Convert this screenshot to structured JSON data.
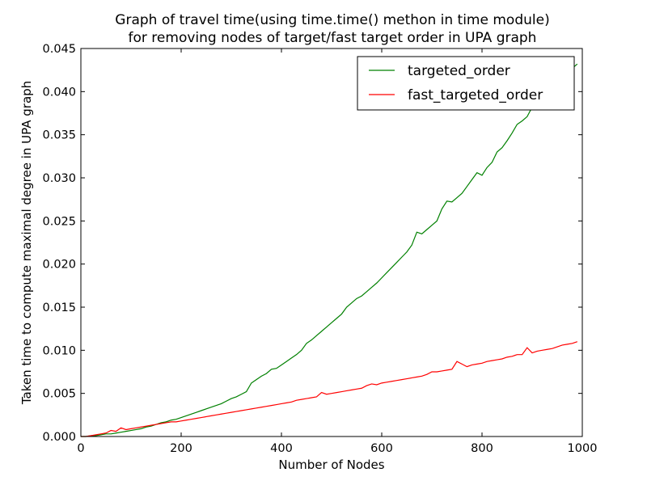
{
  "chart_data": {
    "type": "line",
    "title": "Graph of travel time(using time.time() methon in time module)",
    "subtitle": "for removing nodes of target/fast target order in UPA graph",
    "xlabel": "Number of Nodes",
    "ylabel": "Taken time to compute maximal degree in UPA graph",
    "xlim": [
      0,
      1000
    ],
    "ylim": [
      0,
      0.045
    ],
    "xticks": [
      "0",
      "200",
      "400",
      "600",
      "800",
      "1000"
    ],
    "yticks": [
      "0.000",
      "0.005",
      "0.010",
      "0.015",
      "0.020",
      "0.025",
      "0.030",
      "0.035",
      "0.040",
      "0.045"
    ],
    "grid": false,
    "legend_position": "top-right",
    "x": [
      10,
      20,
      30,
      40,
      50,
      60,
      70,
      80,
      90,
      100,
      110,
      120,
      130,
      140,
      150,
      160,
      170,
      180,
      190,
      200,
      210,
      220,
      230,
      240,
      250,
      260,
      270,
      280,
      290,
      300,
      310,
      320,
      330,
      340,
      350,
      360,
      370,
      380,
      390,
      400,
      410,
      420,
      430,
      440,
      450,
      460,
      470,
      480,
      490,
      500,
      510,
      520,
      530,
      540,
      550,
      560,
      570,
      580,
      590,
      600,
      610,
      620,
      630,
      640,
      650,
      660,
      670,
      680,
      690,
      700,
      710,
      720,
      730,
      740,
      750,
      760,
      770,
      780,
      790,
      800,
      810,
      820,
      830,
      840,
      850,
      860,
      870,
      880,
      890,
      900,
      910,
      920,
      930,
      940,
      950,
      960,
      970,
      980,
      990
    ],
    "series": [
      {
        "name": "targeted_order",
        "color": "#008000",
        "values": [
          0.0,
          0.0001,
          0.0001,
          0.0002,
          0.0003,
          0.0003,
          0.0004,
          0.0005,
          0.0006,
          0.0007,
          0.0008,
          0.0009,
          0.0011,
          0.0012,
          0.0014,
          0.0016,
          0.0017,
          0.0019,
          0.002,
          0.0022,
          0.0024,
          0.0026,
          0.0028,
          0.003,
          0.0032,
          0.0034,
          0.0036,
          0.0038,
          0.0041,
          0.0044,
          0.0046,
          0.0049,
          0.0052,
          0.0062,
          0.0066,
          0.007,
          0.0073,
          0.0078,
          0.0079,
          0.0083,
          0.0087,
          0.0091,
          0.0095,
          0.01,
          0.0108,
          0.0112,
          0.0117,
          0.0122,
          0.0127,
          0.0132,
          0.0137,
          0.0142,
          0.015,
          0.0155,
          0.016,
          0.0163,
          0.0168,
          0.0173,
          0.0178,
          0.0184,
          0.019,
          0.0196,
          0.0202,
          0.0208,
          0.0214,
          0.0222,
          0.0237,
          0.0235,
          0.024,
          0.0245,
          0.025,
          0.0264,
          0.0273,
          0.0272,
          0.0277,
          0.0282,
          0.029,
          0.0298,
          0.0306,
          0.0303,
          0.0312,
          0.0318,
          0.033,
          0.0335,
          0.0343,
          0.0352,
          0.0362,
          0.0366,
          0.0371,
          0.0382,
          0.0392,
          0.0399,
          0.0404,
          0.0409,
          0.0415,
          0.042,
          0.0424,
          0.0427,
          0.0432
        ]
      },
      {
        "name": "fast_targeted_order",
        "color": "#ff0000",
        "values": [
          0.0,
          0.0001,
          0.0002,
          0.0003,
          0.0004,
          0.0007,
          0.0006,
          0.001,
          0.0008,
          0.0009,
          0.001,
          0.0011,
          0.0012,
          0.0013,
          0.0014,
          0.0015,
          0.0016,
          0.0017,
          0.0017,
          0.0018,
          0.0019,
          0.002,
          0.0021,
          0.0022,
          0.0023,
          0.0024,
          0.0025,
          0.0026,
          0.0027,
          0.0028,
          0.0029,
          0.003,
          0.0031,
          0.0032,
          0.0033,
          0.0034,
          0.0035,
          0.0036,
          0.0037,
          0.0038,
          0.0039,
          0.004,
          0.0042,
          0.0043,
          0.0044,
          0.0045,
          0.0046,
          0.0051,
          0.0049,
          0.005,
          0.0051,
          0.0052,
          0.0053,
          0.0054,
          0.0055,
          0.0056,
          0.0059,
          0.0061,
          0.006,
          0.0062,
          0.0063,
          0.0064,
          0.0065,
          0.0066,
          0.0067,
          0.0068,
          0.0069,
          0.007,
          0.0072,
          0.0075,
          0.0075,
          0.0076,
          0.0077,
          0.0078,
          0.0087,
          0.0084,
          0.0081,
          0.0083,
          0.0084,
          0.0085,
          0.0087,
          0.0088,
          0.0089,
          0.009,
          0.0092,
          0.0093,
          0.0095,
          0.0095,
          0.0103,
          0.0097,
          0.0099,
          0.01,
          0.0101,
          0.0102,
          0.0104,
          0.0106,
          0.0107,
          0.0108,
          0.011
        ]
      }
    ]
  }
}
